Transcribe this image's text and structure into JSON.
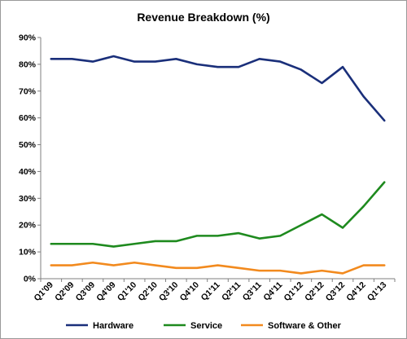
{
  "chart_data": {
    "type": "line",
    "title": "Revenue Breakdown (%)",
    "xlabel": "",
    "ylabel": "",
    "categories": [
      "Q1'09",
      "Q2'09",
      "Q3'09",
      "Q4'09",
      "Q1'10",
      "Q2'10",
      "Q3'10",
      "Q4'10",
      "Q1'11",
      "Q2'11",
      "Q3'11",
      "Q4'11",
      "Q1'12",
      "Q2'12",
      "Q3'12",
      "Q4'12",
      "Q1'13"
    ],
    "ylim": [
      0,
      90
    ],
    "yticks": [
      0,
      10,
      20,
      30,
      40,
      50,
      60,
      70,
      80,
      90
    ],
    "ytick_labels": [
      "0%",
      "10%",
      "20%",
      "30%",
      "40%",
      "50%",
      "60%",
      "70%",
      "80%",
      "90%"
    ],
    "grid": false,
    "legend_position": "bottom",
    "series": [
      {
        "name": "Hardware",
        "color": "#1a2f7a",
        "values": [
          82,
          82,
          81,
          83,
          81,
          81,
          82,
          80,
          79,
          79,
          82,
          81,
          78,
          73,
          79,
          68,
          59
        ]
      },
      {
        "name": "Service",
        "color": "#1e8a1e",
        "values": [
          13,
          13,
          13,
          12,
          13,
          14,
          14,
          16,
          16,
          17,
          15,
          16,
          20,
          24,
          19,
          27,
          36
        ]
      },
      {
        "name": "Software & Other",
        "color": "#f28a1e",
        "values": [
          5,
          5,
          6,
          5,
          6,
          5,
          4,
          4,
          5,
          4,
          3,
          3,
          2,
          3,
          2,
          5,
          5
        ]
      }
    ]
  }
}
